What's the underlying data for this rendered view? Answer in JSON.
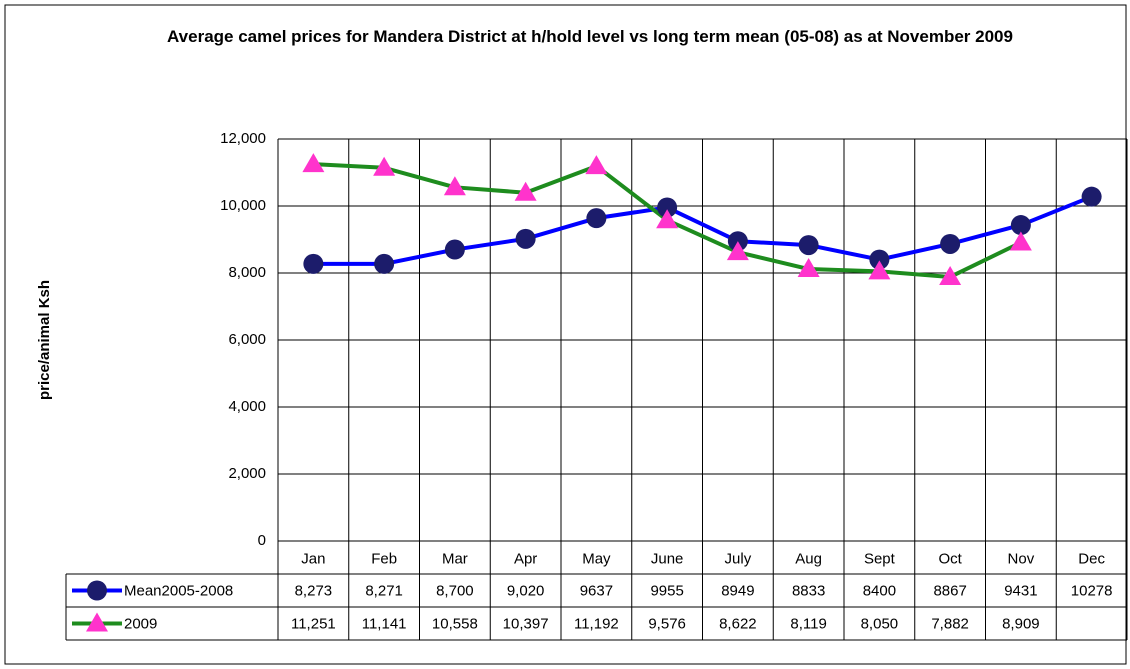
{
  "chart_data": {
    "type": "line",
    "title": "Average camel prices for Mandera District at h/hold level vs long term mean (05-08)  as at November 2009",
    "ylabel": "price/animal Ksh",
    "categories": [
      "Jan",
      "Feb",
      "Mar",
      "Apr",
      "May",
      "June",
      "July",
      "Aug",
      "Sept",
      "Oct",
      "Nov",
      "Dec"
    ],
    "series": [
      {
        "name": "Mean2005-2008",
        "color": "#0000ff",
        "marker_color": "#1c1c6b",
        "marker": "circle",
        "values": [
          8273,
          8271,
          8700,
          9020,
          9637,
          9955,
          8949,
          8833,
          8400,
          8867,
          9431,
          10278
        ],
        "value_labels": [
          "8,273",
          "8,271",
          "8,700",
          "9,020",
          "9637",
          "9955",
          "8949",
          "8833",
          "8400",
          "8867",
          "9431",
          "10278"
        ]
      },
      {
        "name": "2009",
        "color": "#1e8c1e",
        "marker_color": "#ff33cc",
        "marker": "triangle",
        "values": [
          11251,
          11141,
          10558,
          10397,
          11192,
          9576,
          8622,
          8119,
          8050,
          7882,
          8909,
          null
        ],
        "value_labels": [
          "11,251",
          "11,141",
          "10,558",
          "10,397",
          "11,192",
          "9,576",
          "8,622",
          "8,119",
          "8,050",
          "7,882",
          "8,909",
          null
        ]
      }
    ],
    "ylim": [
      0,
      12000
    ],
    "yticks": [
      0,
      {
        "value": 2000,
        "label": "2,000"
      },
      {
        "value": 4000,
        "label": "4,000"
      },
      {
        "value": 6000,
        "label": "6,000"
      },
      {
        "value": 8000,
        "label": "8,000"
      },
      {
        "value": 10000,
        "label": "10,000"
      },
      {
        "value": 12000,
        "label": "12,000"
      }
    ],
    "grid": true
  }
}
